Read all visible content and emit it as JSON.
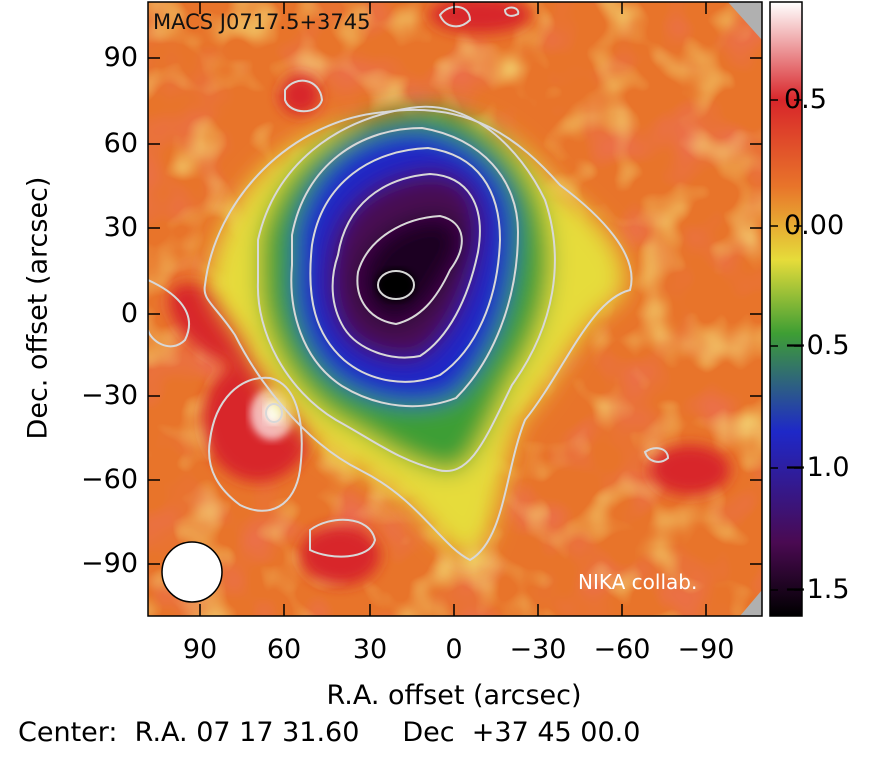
{
  "title": "MACS J0717.5+3745",
  "credit": "NIKA collab.",
  "xlabel": "R.A. offset (arcsec)",
  "ylabel": "Dec. offset (arcsec)",
  "x_ticks": [
    "90",
    "60",
    "30",
    "0",
    "−30",
    "−60",
    "−90"
  ],
  "y_ticks": [
    "90",
    "60",
    "30",
    "0",
    "−30",
    "−60",
    "−90"
  ],
  "colorbar_ticks": [
    "0.5",
    "0.00",
    "−0.5",
    "−1.0",
    "−1.5"
  ],
  "center": {
    "label": "Center:",
    "ra_label": "R.A.",
    "ra_value": "07 17 31.60",
    "dec_label": "Dec",
    "dec_value": "+37 45 00.0"
  },
  "colors": {
    "background_orange": "#e8742a",
    "red": "#d8262a",
    "yellow": "#e6dc3a",
    "green": "#3e9e34",
    "blue": "#1e28c8",
    "purple": "#4a0a52",
    "black": "#0a0008",
    "contour": "#d8d8d8"
  }
}
